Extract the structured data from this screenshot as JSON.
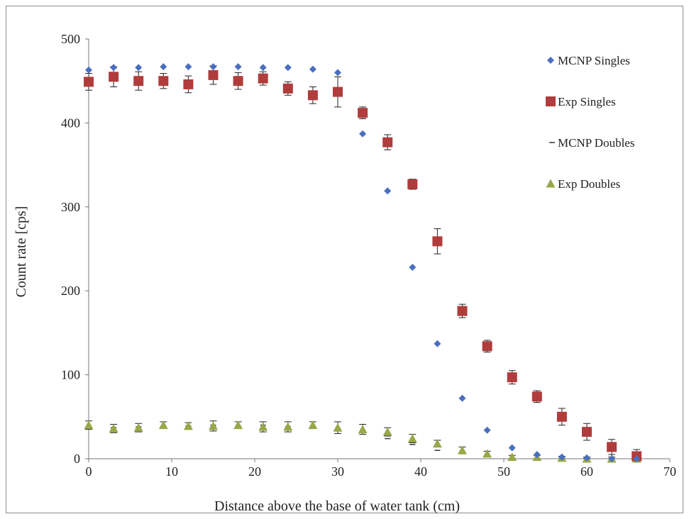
{
  "chart_data": {
    "type": "scatter",
    "title": "",
    "xlabel": "Distance  above the base of  water tank (cm)",
    "ylabel": "Count rate [cps]",
    "xlim": [
      0,
      70
    ],
    "ylim": [
      0,
      500
    ],
    "x_ticks": [
      "0",
      "10",
      "20",
      "30",
      "40",
      "50",
      "60",
      "70"
    ],
    "y_ticks": [
      "0",
      "100",
      "200",
      "300",
      "400",
      "500"
    ],
    "grid": false,
    "legend_position": "right",
    "series": [
      {
        "name": "MCNP Singles",
        "marker": "diamond",
        "color": "#4a6fbf",
        "x": [
          0,
          3,
          6,
          9,
          12,
          15,
          18,
          21,
          24,
          27,
          30,
          33,
          36,
          39,
          42,
          45,
          48,
          51,
          54,
          57,
          60,
          63,
          66
        ],
        "y": [
          463,
          466,
          466,
          467,
          467,
          467,
          467,
          466,
          466,
          464,
          460,
          387,
          319,
          228,
          137,
          72,
          34,
          13,
          5,
          2,
          1,
          0,
          0
        ]
      },
      {
        "name": "Exp Singles",
        "marker": "square",
        "color": "#b03c3c",
        "x": [
          0,
          3,
          6,
          9,
          12,
          15,
          18,
          21,
          24,
          27,
          30,
          33,
          36,
          39,
          42,
          45,
          48,
          51,
          54,
          57,
          60,
          63,
          66
        ],
        "y": [
          449,
          455,
          450,
          450,
          446,
          457,
          450,
          453,
          441,
          433,
          437,
          412,
          377,
          327,
          259,
          176,
          134,
          97,
          74,
          50,
          32,
          14,
          3
        ],
        "err": [
          10,
          12,
          11,
          9,
          10,
          11,
          10,
          8,
          8,
          10,
          18,
          7,
          9,
          6,
          15,
          8,
          7,
          8,
          7,
          10,
          10,
          9,
          8
        ]
      },
      {
        "name": "MCNP Doubles",
        "marker": "dash",
        "color": "#333333",
        "x": [
          0,
          3,
          6,
          9,
          12,
          15,
          18,
          21,
          24,
          27,
          30,
          33,
          36,
          39,
          42,
          45,
          48,
          51,
          54,
          57,
          60,
          63,
          66
        ],
        "y": [
          38,
          37,
          38,
          39,
          39,
          40,
          39,
          40,
          38,
          39,
          36,
          31,
          24,
          17,
          10,
          6,
          3,
          1,
          0,
          0,
          0,
          0,
          0
        ]
      },
      {
        "name": "Exp Doubles",
        "marker": "triangle",
        "color": "#98a848",
        "x": [
          0,
          3,
          6,
          9,
          12,
          15,
          18,
          21,
          24,
          27,
          30,
          33,
          36,
          39,
          42,
          45,
          48,
          51,
          54,
          57,
          60,
          63,
          66
        ],
        "y": [
          40,
          36,
          37,
          40,
          39,
          39,
          40,
          38,
          38,
          40,
          37,
          35,
          32,
          24,
          18,
          10,
          6,
          2,
          2,
          1,
          0,
          0,
          0
        ],
        "err": [
          5,
          5,
          5,
          4,
          4,
          6,
          4,
          6,
          6,
          4,
          7,
          6,
          5,
          5,
          4,
          4,
          3,
          2,
          2,
          2,
          2,
          2,
          2
        ]
      }
    ]
  }
}
